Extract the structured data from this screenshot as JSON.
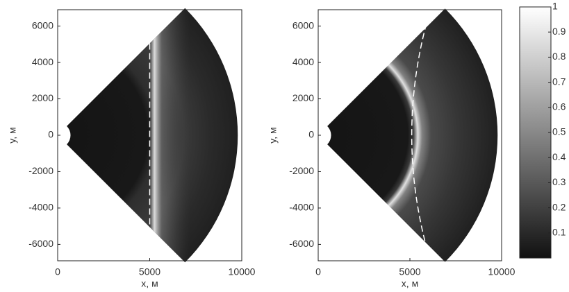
{
  "chart_data": [
    {
      "type": "image",
      "xlabel": "x, м",
      "ylabel": "y, м",
      "xlim": [
        0,
        10000
      ],
      "ylim": [
        -6900,
        6900
      ],
      "xticks": [
        0,
        5000,
        10000
      ],
      "yticks": [
        -6000,
        -4000,
        -2000,
        0,
        2000,
        4000,
        6000
      ]
    },
    {
      "type": "image",
      "xlabel": "x, м",
      "ylabel": "y, м",
      "xlim": [
        0,
        10000
      ],
      "ylim": [
        -6900,
        6900
      ],
      "xticks": [
        0,
        5000,
        10000
      ],
      "yticks": [
        -6000,
        -4000,
        -2000,
        0,
        2000,
        4000,
        6000
      ],
      "colorbar": {
        "lim": [
          0,
          1
        ],
        "ticks": [
          0.1,
          0.2,
          0.3,
          0.4,
          0.5,
          0.6,
          0.7,
          0.8,
          0.9,
          1
        ]
      }
    }
  ]
}
